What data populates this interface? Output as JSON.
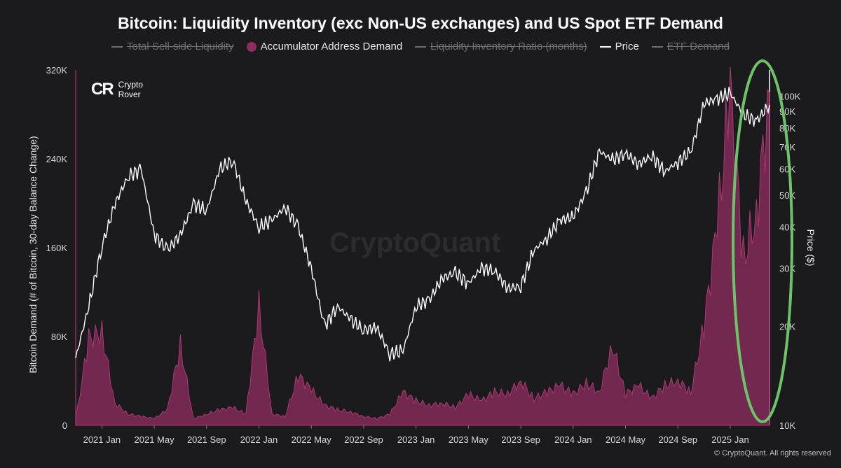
{
  "title": "Bitcoin: Liquidity Inventory (exc Non-US exchanges) and US Spot ETF Demand",
  "legend": [
    {
      "label": "Total Sell-side Liquidity",
      "active": false,
      "kind": "line"
    },
    {
      "label": "Accumulator Address Demand",
      "active": true,
      "kind": "dot",
      "color": "#8e2e5e"
    },
    {
      "label": "Liquidity Inventory Ratio (months)",
      "active": false,
      "kind": "line"
    },
    {
      "label": "Price",
      "active": true,
      "kind": "line",
      "color": "#ffffff"
    },
    {
      "label": "ETF Demand",
      "active": false,
      "kind": "line"
    }
  ],
  "brand": {
    "logo": "CR",
    "name": "Crypto\nRover"
  },
  "watermark": "CryptoQuant",
  "copyright": "© CryptoQuant. All rights reserved",
  "colors": {
    "demand_fill": "#7d2a55",
    "demand_stroke": "#a83a72",
    "price": "#ffffff",
    "highlight": "#6cc36a"
  },
  "chart_data": {
    "type": "area",
    "title": "Bitcoin: Liquidity Inventory (exc Non-US exchanges) and US Spot ETF Demand",
    "x_ticks": [
      "2021 Jan",
      "2021 May",
      "2021 Sep",
      "2022 Jan",
      "2022 May",
      "2022 Sep",
      "2023 Jan",
      "2023 May",
      "2023 Sep",
      "2024 Jan",
      "2024 May",
      "2024 Sep",
      "2025 Jan"
    ],
    "x_range": [
      "2020-11",
      "2025-04"
    ],
    "ylabel": "Bitcoin Demand (# of Bitcoin, 30-day Balance Change)",
    "ylim": [
      0,
      320000
    ],
    "y_ticks": [
      "0",
      "80K",
      "160K",
      "240K",
      "320K"
    ],
    "y_tick_values": [
      0,
      80000,
      160000,
      240000,
      320000
    ],
    "y2label": "Price ($)",
    "y2_scale": "log",
    "y2lim": [
      10000,
      120000
    ],
    "y2_ticks": [
      "10K",
      "20K",
      "30K",
      "40K",
      "50K",
      "60K",
      "70K",
      "80K",
      "90K",
      "100K"
    ],
    "y2_tick_values": [
      10000,
      20000,
      30000,
      40000,
      50000,
      60000,
      70000,
      80000,
      90000,
      100000
    ],
    "grid": false,
    "series": [
      {
        "name": "Accumulator Address Demand",
        "axis": "left",
        "x": [
          "2020-11",
          "2020-12",
          "2021-01",
          "2021-02",
          "2021-03",
          "2021-04",
          "2021-05",
          "2021-06",
          "2021-07",
          "2021-08",
          "2021-09",
          "2021-10",
          "2021-11",
          "2021-12",
          "2022-01",
          "2022-02",
          "2022-03",
          "2022-04",
          "2022-05",
          "2022-06",
          "2022-07",
          "2022-08",
          "2022-09",
          "2022-10",
          "2022-11",
          "2022-12",
          "2023-01",
          "2023-02",
          "2023-03",
          "2023-04",
          "2023-05",
          "2023-06",
          "2023-07",
          "2023-08",
          "2023-09",
          "2023-10",
          "2023-11",
          "2023-12",
          "2024-01",
          "2024-02",
          "2024-03",
          "2024-04",
          "2024-05",
          "2024-06",
          "2024-07",
          "2024-08",
          "2024-09",
          "2024-10",
          "2024-11",
          "2024-12",
          "2025-01",
          "2025-02",
          "2025-03",
          "2025-04"
        ],
        "values": [
          5000,
          78000,
          84000,
          20000,
          10000,
          8000,
          6000,
          14000,
          72000,
          6000,
          10000,
          14000,
          16000,
          10000,
          107000,
          10000,
          8000,
          45000,
          32000,
          18000,
          14000,
          12000,
          8000,
          6000,
          10000,
          30000,
          22000,
          18000,
          20000,
          16000,
          28000,
          22000,
          30000,
          28000,
          40000,
          24000,
          30000,
          36000,
          28000,
          38000,
          30000,
          72000,
          28000,
          36000,
          24000,
          36000,
          40000,
          30000,
          90000,
          180000,
          300000,
          150000,
          190000,
          300000
        ]
      },
      {
        "name": "Price",
        "axis": "right",
        "x": [
          "2020-11",
          "2020-12",
          "2021-01",
          "2021-02",
          "2021-03",
          "2021-04",
          "2021-05",
          "2021-06",
          "2021-07",
          "2021-08",
          "2021-09",
          "2021-10",
          "2021-11",
          "2021-12",
          "2022-01",
          "2022-02",
          "2022-03",
          "2022-04",
          "2022-05",
          "2022-06",
          "2022-07",
          "2022-08",
          "2022-09",
          "2022-10",
          "2022-11",
          "2022-12",
          "2023-01",
          "2023-02",
          "2023-03",
          "2023-04",
          "2023-05",
          "2023-06",
          "2023-07",
          "2023-08",
          "2023-09",
          "2023-10",
          "2023-11",
          "2023-12",
          "2024-01",
          "2024-02",
          "2024-03",
          "2024-04",
          "2024-05",
          "2024-06",
          "2024-07",
          "2024-08",
          "2024-09",
          "2024-10",
          "2024-11",
          "2024-12",
          "2025-01",
          "2025-02",
          "2025-03",
          "2025-04"
        ],
        "values": [
          16000,
          23000,
          35000,
          47000,
          57000,
          60000,
          38000,
          34000,
          38000,
          47000,
          45000,
          60000,
          64000,
          48000,
          40000,
          42000,
          46000,
          40000,
          30000,
          20000,
          23000,
          21000,
          19500,
          19800,
          16500,
          16800,
          23000,
          24000,
          28000,
          29000,
          27000,
          30000,
          29500,
          26000,
          26500,
          34000,
          37000,
          42000,
          43000,
          51000,
          68000,
          64000,
          67000,
          62000,
          66000,
          59000,
          63000,
          68000,
          95000,
          98000,
          102000,
          88000,
          84000,
          94000
        ]
      }
    ]
  }
}
